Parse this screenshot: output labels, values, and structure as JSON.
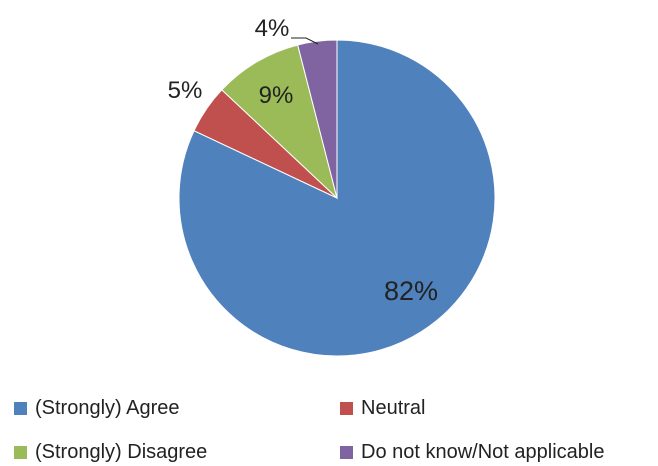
{
  "chart_data": {
    "type": "pie",
    "title": "",
    "categories": [
      "(Strongly) Agree",
      "Neutral",
      "(Strongly) Disagree",
      "Do not know/Not applicable"
    ],
    "values": [
      82,
      5,
      9,
      4
    ],
    "labels": [
      "82%",
      "5%",
      "9%",
      "4%"
    ],
    "colors": [
      "#4F81BD",
      "#C0504D",
      "#9BBB59",
      "#8064A2"
    ],
    "legend_position": "bottom"
  }
}
